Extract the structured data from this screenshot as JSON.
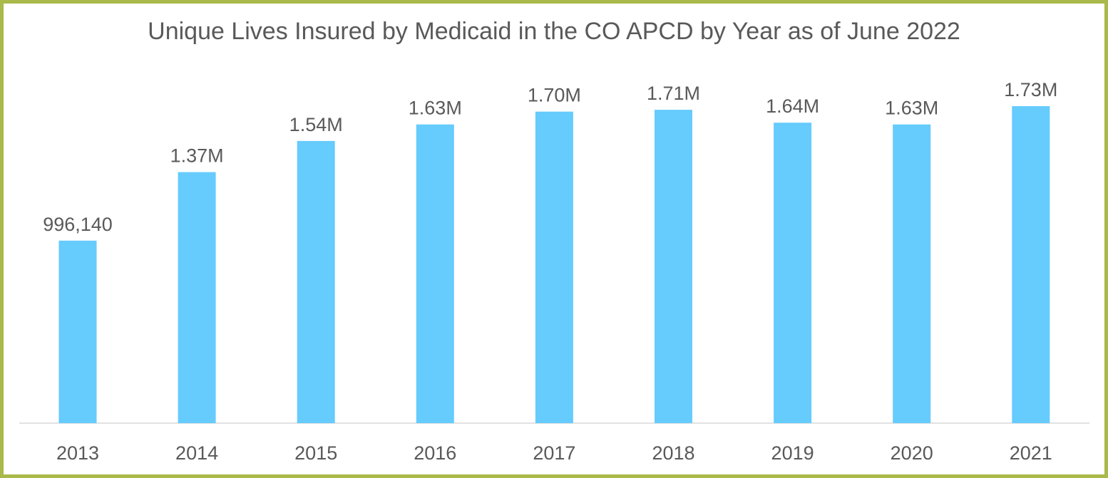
{
  "chart_data": {
    "type": "bar",
    "title": "Unique Lives Insured by Medicaid in the CO APCD by Year as of June 2022",
    "categories": [
      "2013",
      "2014",
      "2015",
      "2016",
      "2017",
      "2018",
      "2019",
      "2020",
      "2021"
    ],
    "values": [
      996140,
      1370000,
      1540000,
      1630000,
      1700000,
      1710000,
      1640000,
      1630000,
      1730000
    ],
    "data_labels": [
      "996,140",
      "1.37M",
      "1.54M",
      "1.63M",
      "1.70M",
      "1.71M",
      "1.64M",
      "1.63M",
      "1.73M"
    ],
    "ylim": [
      0,
      2000000
    ],
    "grid": false,
    "colors": {
      "bar": "#66cbfd",
      "border": "#a9b94a",
      "text": "#595959",
      "axis": "#d9d9d9"
    }
  }
}
